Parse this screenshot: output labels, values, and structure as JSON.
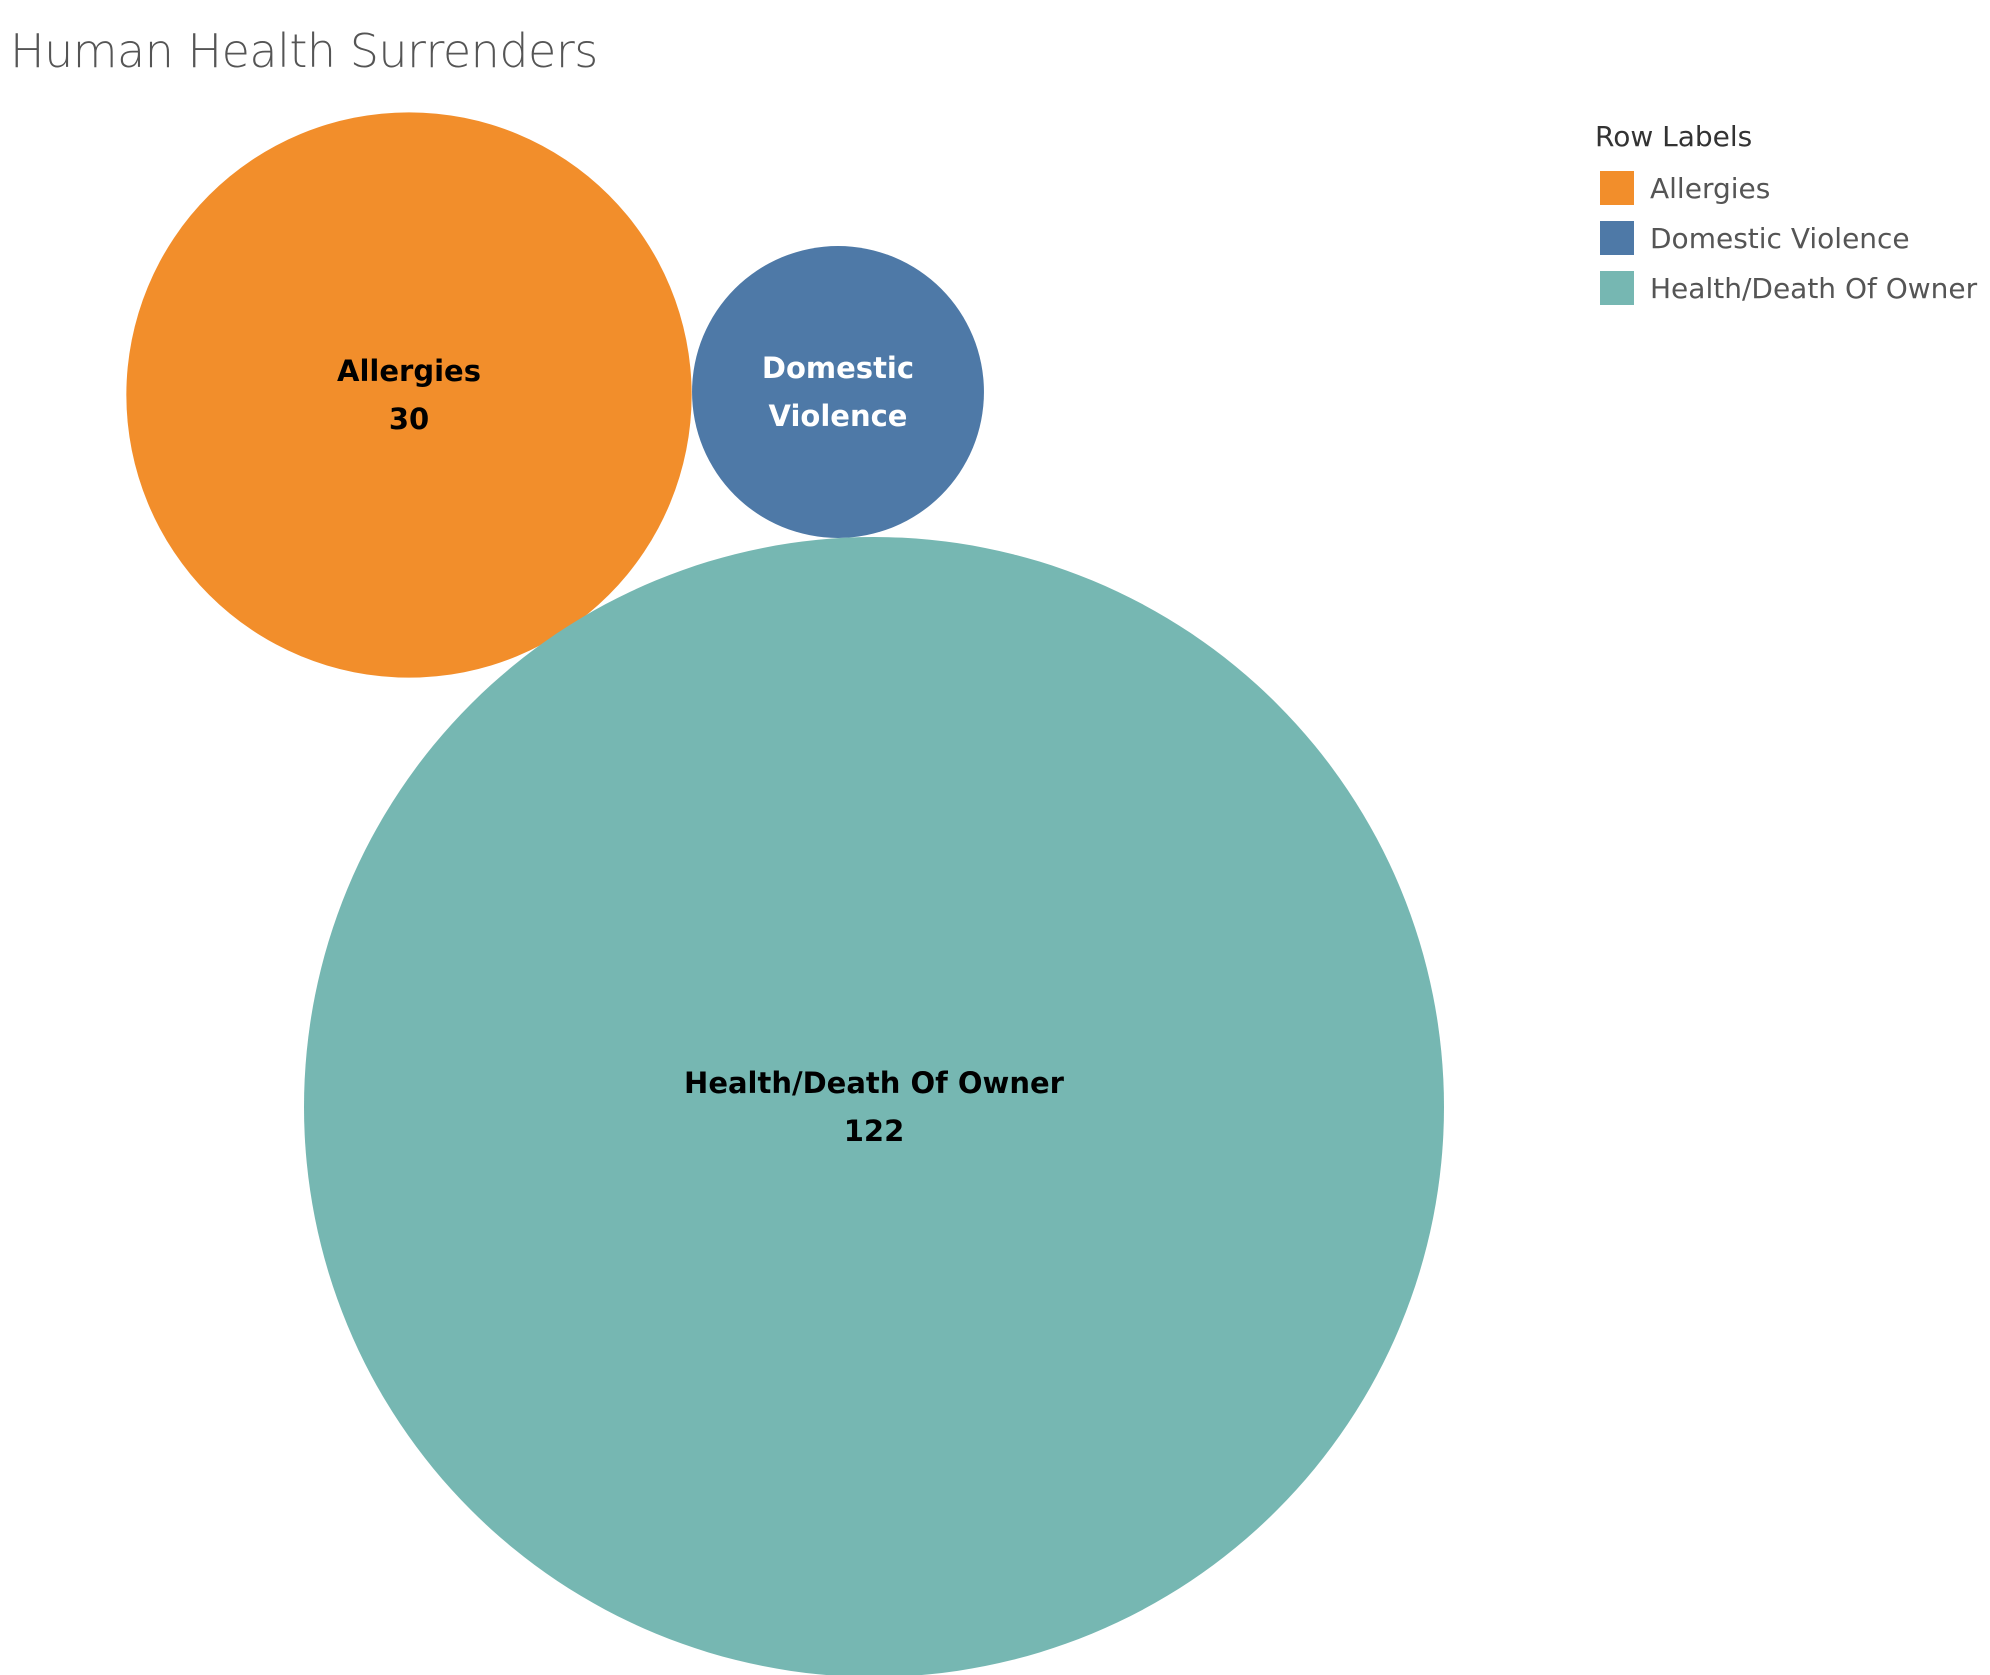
{
  "chart_data": {
    "type": "bubble",
    "title": "Human Health Surrenders",
    "legend": {
      "title": "Row Labels",
      "placement": "top-right"
    },
    "series": [
      {
        "name": "Allergies",
        "value": 30,
        "value_label": "30",
        "label_lines": [
          "Allergies"
        ],
        "color": "#F28E2B",
        "text_color": "#000000"
      },
      {
        "name": "Domestic Violence",
        "value": 8,
        "value_label": "",
        "label_lines": [
          "Domestic",
          "Violence"
        ],
        "color": "#4E79A7",
        "text_color": "#ffffff"
      },
      {
        "name": "Health/Death Of Owner",
        "value": 122,
        "value_label": "122",
        "label_lines": [
          "Health/Death Of Owner"
        ],
        "color": "#76B7B2",
        "text_color": "#000000"
      }
    ]
  }
}
